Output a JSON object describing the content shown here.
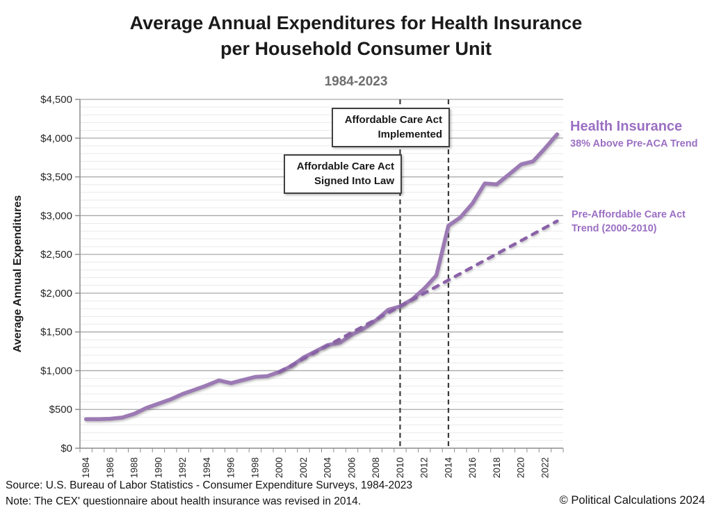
{
  "header": {
    "title_line1": "Average Annual Expenditures for Health Insurance",
    "title_line2": "per Household Consumer Unit",
    "subtitle": "1984-2023"
  },
  "colors": {
    "series_line": "#9c7ab4",
    "trend_line": "#8a62a8",
    "purple_text": "#9b6fc3",
    "grid_major": "#a9a9a9",
    "grid_minor": "#e9e9e9",
    "axis": "#8c8c8c",
    "event_line": "#3a3a3a",
    "tick_text": "#262626",
    "title_text": "#1a1a1a",
    "subtitle_text": "#6e6e6e"
  },
  "chart_data": {
    "type": "line",
    "title": "Average Annual Expenditures for Health Insurance per Household Consumer Unit",
    "subtitle": "1984-2023",
    "xlabel": "",
    "ylabel": "Average Annual Expenditures",
    "ylim": [
      0,
      4500
    ],
    "y_major_step": 500,
    "y_minor_step": 100,
    "grid": true,
    "legend_position": "none",
    "y_tick_labels": [
      "$0",
      "$500",
      "$1,000",
      "$1,500",
      "$2,000",
      "$2,500",
      "$3,000",
      "$3,500",
      "$4,000",
      "$4,500"
    ],
    "x_tick_labels": [
      "1984",
      "1986",
      "1988",
      "1990",
      "1992",
      "1994",
      "1996",
      "1998",
      "2000",
      "2002",
      "2004",
      "2006",
      "2008",
      "2010",
      "2012",
      "2014",
      "2016",
      "2018",
      "2020",
      "2022"
    ],
    "years": [
      1984,
      1985,
      1986,
      1987,
      1988,
      1989,
      1990,
      1991,
      1992,
      1993,
      1994,
      1995,
      1996,
      1997,
      1998,
      1999,
      2000,
      2001,
      2002,
      2003,
      2004,
      2005,
      2006,
      2007,
      2008,
      2009,
      2010,
      2011,
      2012,
      2013,
      2014,
      2015,
      2016,
      2017,
      2018,
      2019,
      2020,
      2021,
      2022,
      2023
    ],
    "series": [
      {
        "name": "Health Insurance",
        "values": [
          375,
          375,
          380,
          395,
          445,
          520,
          575,
          630,
          700,
          755,
          810,
          875,
          840,
          880,
          920,
          930,
          985,
          1060,
          1170,
          1250,
          1330,
          1360,
          1465,
          1545,
          1650,
          1785,
          1830,
          1920,
          2060,
          2230,
          2870,
          2980,
          3160,
          3415,
          3405,
          3530,
          3660,
          3700,
          3870,
          4050
        ]
      }
    ],
    "trend": {
      "name": "Pre-Affordable Care Act Trend (2000-2010)",
      "years": [
        2000,
        2023
      ],
      "values": [
        985,
        2930
      ],
      "style": "dashed"
    },
    "event_lines": [
      {
        "year": 2010,
        "label": "Affordable Care Act Signed Into Law"
      },
      {
        "year": 2014,
        "label": "Affordable Care Act Implemented"
      }
    ]
  },
  "annotations": {
    "implemented": {
      "line1": "Affordable Care Act",
      "line2": "Implemented"
    },
    "signed": {
      "line1": "Affordable Care Act",
      "line2": "Signed Into Law"
    },
    "series_label": {
      "line1": "Health Insurance",
      "line2": "38% Above Pre-ACA Trend"
    },
    "trend_label": {
      "line1": "Pre-Affordable Care Act",
      "line2": "Trend (2000-2010)"
    }
  },
  "footer": {
    "source": "Source: U.S. Bureau of Labor Statistics - Consumer Expenditure Surveys, 1984-2023",
    "note": "Note: The CEX' questionnaire about health insurance was revised in 2014.",
    "copyright": "© Political Calculations 2024"
  }
}
